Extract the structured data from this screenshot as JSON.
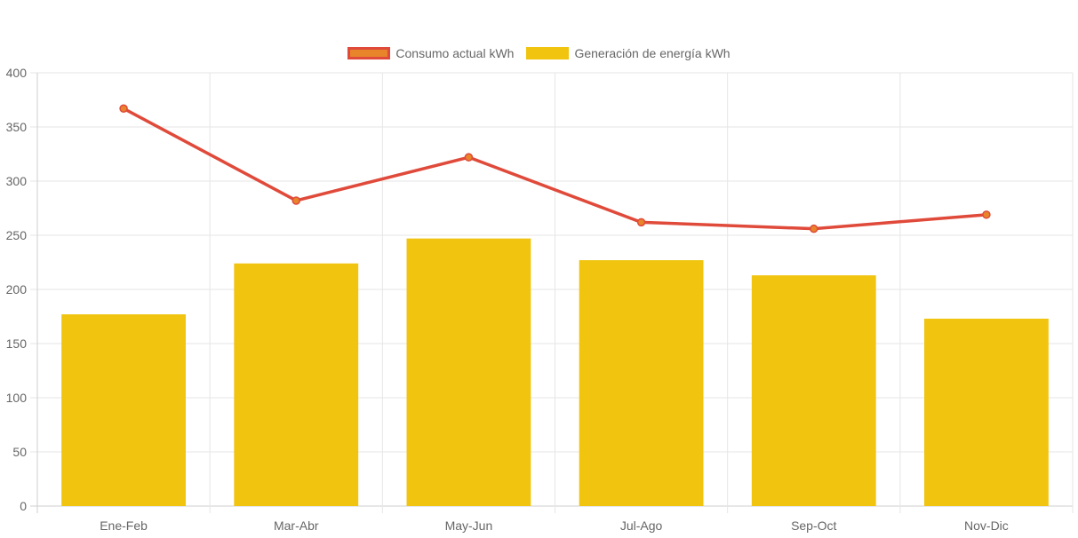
{
  "chart_data": {
    "type": "bar",
    "title": "",
    "xlabel": "",
    "ylabel": "",
    "ylim": [
      0,
      400
    ],
    "yticks": [
      0,
      50,
      100,
      150,
      200,
      250,
      300,
      350,
      400
    ],
    "grid": true,
    "legend_position": "top-center",
    "categories": [
      "Ene-Feb",
      "Mar-Abr",
      "May-Jun",
      "Jul-Ago",
      "Sep-Oct",
      "Nov-Dic"
    ],
    "series": [
      {
        "name": "Consumo actual kWh",
        "type": "line",
        "values": [
          367,
          282,
          322,
          262,
          256,
          269
        ],
        "color": "#e8842a",
        "border_color": "#e04a3a"
      },
      {
        "name": "Generación de energía kWh",
        "type": "bar",
        "values": [
          177,
          224,
          247,
          227,
          213,
          173
        ],
        "color": "#f0c40f"
      }
    ]
  },
  "legend": {
    "items": [
      {
        "label": "Consumo actual kWh",
        "fill": "#e8842a",
        "border": "#e04a3a"
      },
      {
        "label": "Generación de energía kWh",
        "fill": "#f0c40f",
        "border": "#f0c40f"
      }
    ]
  }
}
